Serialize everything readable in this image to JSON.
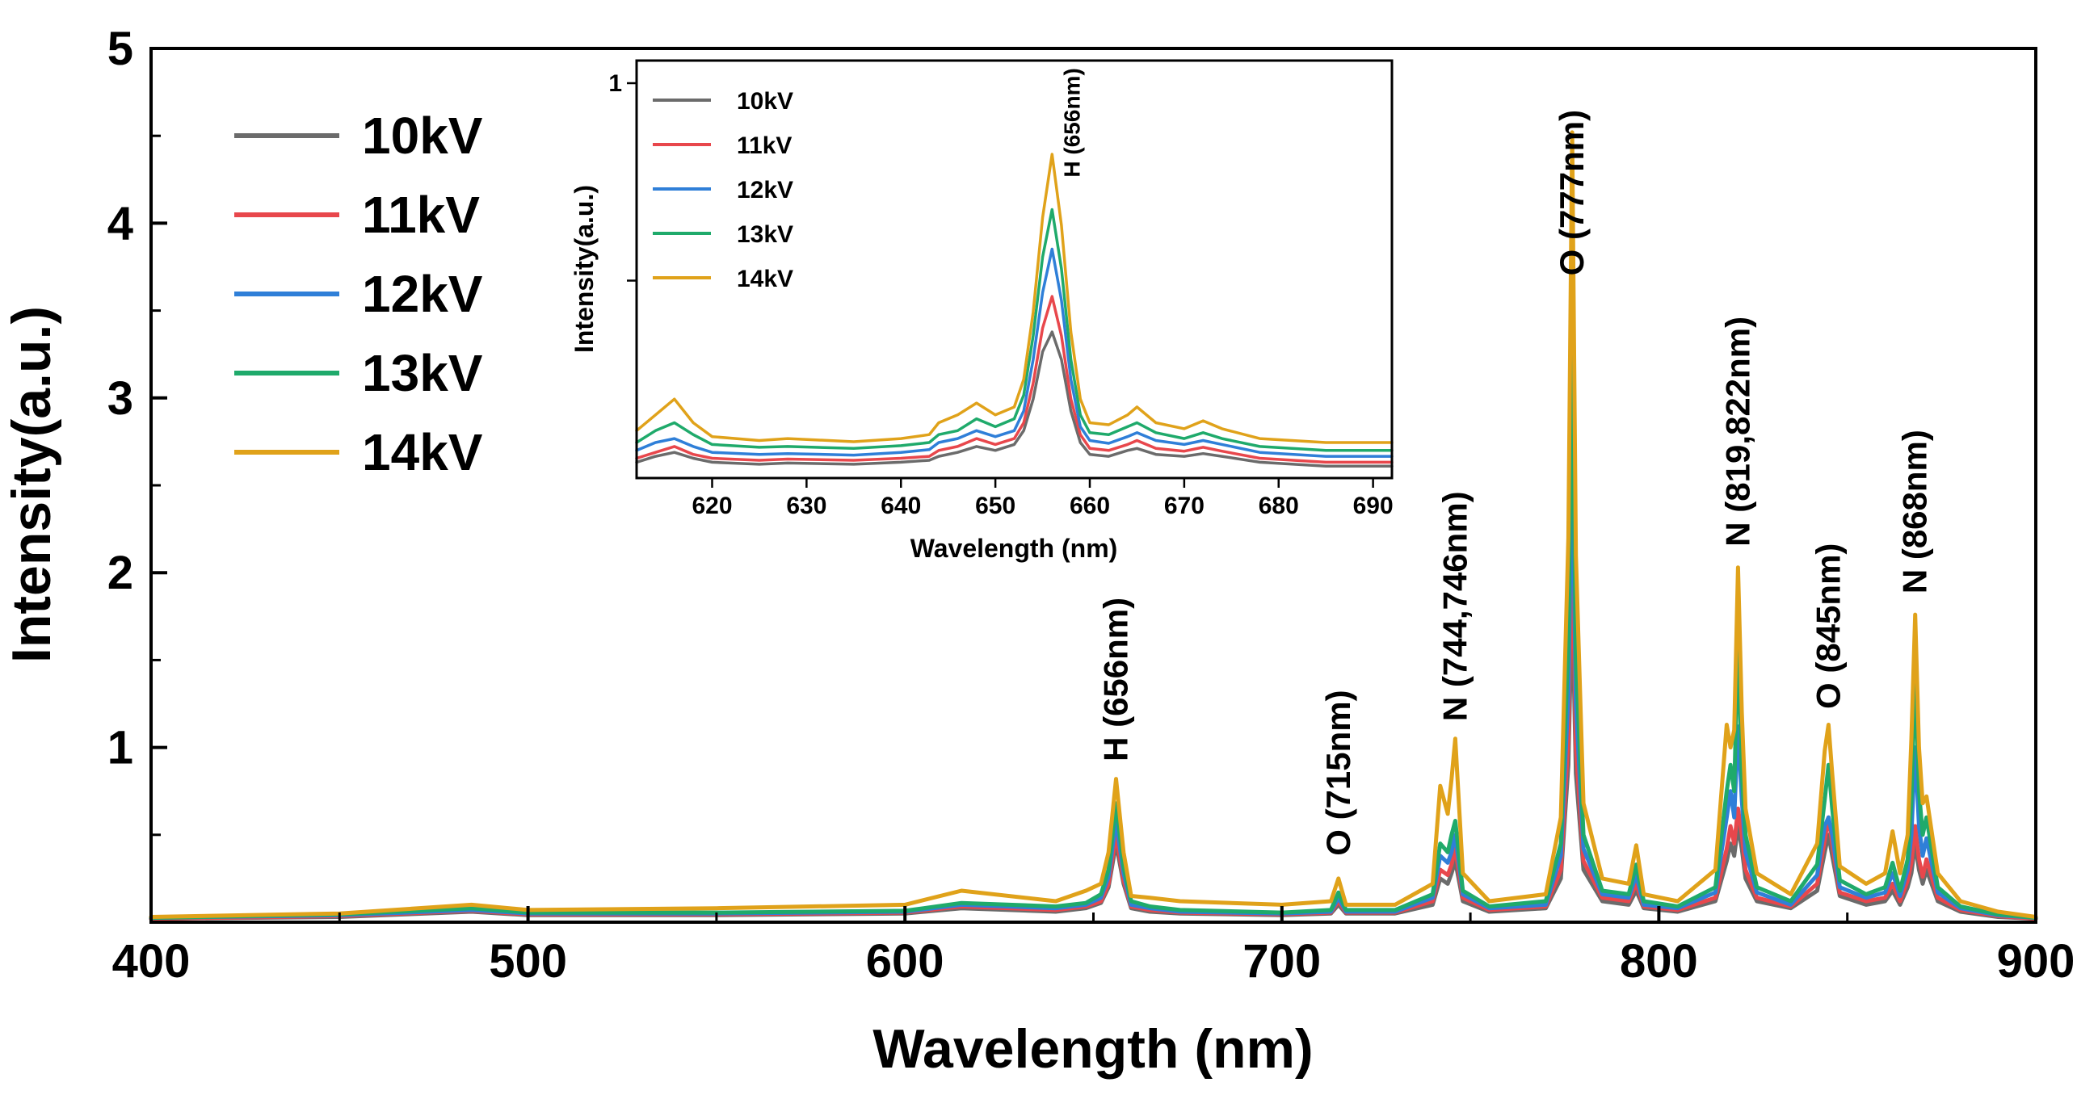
{
  "chart_data": [
    {
      "type": "line",
      "xlabel": "Wavelength (nm)",
      "ylabel": "Intensity(a.u.)",
      "xlim": [
        400,
        900
      ],
      "ylim": [
        0,
        5
      ],
      "x_ticks": [
        400,
        500,
        600,
        700,
        800,
        900
      ],
      "y_ticks": [
        1,
        2,
        3,
        4,
        5
      ],
      "grid": false,
      "legend_position": "top-left",
      "x": [
        400,
        450,
        485,
        500,
        550,
        600,
        615,
        640,
        648,
        652,
        654,
        656,
        658,
        660,
        665,
        673,
        700,
        713,
        715,
        717,
        730,
        740,
        742,
        744,
        745,
        746,
        748,
        755,
        770,
        774,
        776,
        777,
        778,
        780,
        785,
        792,
        794,
        796,
        805,
        815,
        818,
        819,
        820,
        821,
        822,
        823,
        826,
        835,
        842,
        844,
        845,
        846,
        848,
        855,
        860,
        862,
        864,
        866,
        867,
        868,
        869,
        870,
        871,
        874,
        880,
        890,
        900
      ],
      "series": [
        {
          "name": "10kV",
          "color": "#6b6b6b",
          "values": [
            0.02,
            0.03,
            0.06,
            0.04,
            0.04,
            0.05,
            0.08,
            0.06,
            0.08,
            0.11,
            0.2,
            0.45,
            0.22,
            0.08,
            0.06,
            0.05,
            0.04,
            0.05,
            0.1,
            0.05,
            0.05,
            0.1,
            0.25,
            0.22,
            0.28,
            0.35,
            0.12,
            0.06,
            0.08,
            0.25,
            0.9,
            1.85,
            0.85,
            0.3,
            0.12,
            0.1,
            0.18,
            0.08,
            0.06,
            0.12,
            0.35,
            0.45,
            0.38,
            0.55,
            0.42,
            0.25,
            0.12,
            0.08,
            0.18,
            0.4,
            0.5,
            0.38,
            0.15,
            0.1,
            0.12,
            0.18,
            0.1,
            0.2,
            0.28,
            0.45,
            0.3,
            0.22,
            0.3,
            0.12,
            0.06,
            0.03,
            0.02
          ]
        },
        {
          "name": "11kV",
          "color": "#e8474c",
          "values": [
            0.02,
            0.035,
            0.065,
            0.045,
            0.045,
            0.055,
            0.09,
            0.07,
            0.09,
            0.12,
            0.22,
            0.5,
            0.24,
            0.09,
            0.07,
            0.055,
            0.045,
            0.055,
            0.12,
            0.055,
            0.055,
            0.12,
            0.3,
            0.27,
            0.33,
            0.42,
            0.14,
            0.07,
            0.09,
            0.3,
            1.05,
            2.2,
            1.0,
            0.35,
            0.14,
            0.12,
            0.22,
            0.09,
            0.07,
            0.14,
            0.42,
            0.55,
            0.45,
            0.65,
            0.5,
            0.3,
            0.14,
            0.09,
            0.22,
            0.47,
            0.6,
            0.45,
            0.17,
            0.12,
            0.14,
            0.22,
            0.12,
            0.24,
            0.34,
            0.55,
            0.36,
            0.26,
            0.36,
            0.14,
            0.07,
            0.035,
            0.02
          ]
        },
        {
          "name": "12kV",
          "color": "#2f7fd8",
          "values": [
            0.025,
            0.04,
            0.07,
            0.05,
            0.05,
            0.06,
            0.1,
            0.08,
            0.1,
            0.14,
            0.26,
            0.58,
            0.28,
            0.1,
            0.08,
            0.06,
            0.05,
            0.06,
            0.14,
            0.06,
            0.06,
            0.14,
            0.38,
            0.34,
            0.4,
            0.5,
            0.16,
            0.08,
            0.1,
            0.38,
            1.3,
            2.72,
            1.25,
            0.42,
            0.16,
            0.14,
            0.27,
            0.1,
            0.08,
            0.17,
            0.6,
            0.75,
            0.6,
            1.12,
            0.7,
            0.4,
            0.17,
            0.1,
            0.27,
            0.55,
            0.6,
            0.5,
            0.2,
            0.14,
            0.17,
            0.28,
            0.15,
            0.3,
            0.5,
            1.0,
            0.55,
            0.38,
            0.48,
            0.17,
            0.08,
            0.04,
            0.025
          ]
        },
        {
          "name": "13kV",
          "color": "#1faa6b",
          "values": [
            0.025,
            0.045,
            0.08,
            0.055,
            0.055,
            0.065,
            0.11,
            0.09,
            0.11,
            0.16,
            0.3,
            0.68,
            0.32,
            0.12,
            0.09,
            0.07,
            0.055,
            0.07,
            0.17,
            0.07,
            0.07,
            0.16,
            0.45,
            0.4,
            0.5,
            0.58,
            0.18,
            0.09,
            0.12,
            0.45,
            1.6,
            3.32,
            1.5,
            0.5,
            0.18,
            0.16,
            0.33,
            0.12,
            0.09,
            0.2,
            0.75,
            0.9,
            0.75,
            1.64,
            0.85,
            0.5,
            0.2,
            0.12,
            0.33,
            0.7,
            0.9,
            0.65,
            0.24,
            0.16,
            0.2,
            0.34,
            0.18,
            0.36,
            0.7,
            1.43,
            0.75,
            0.5,
            0.6,
            0.2,
            0.09,
            0.045,
            0.025
          ]
        },
        {
          "name": "14kV",
          "color": "#e0a21a",
          "values": [
            0.03,
            0.05,
            0.1,
            0.07,
            0.08,
            0.1,
            0.18,
            0.12,
            0.18,
            0.22,
            0.4,
            0.82,
            0.4,
            0.15,
            0.14,
            0.12,
            0.1,
            0.12,
            0.25,
            0.1,
            0.1,
            0.22,
            0.78,
            0.62,
            0.82,
            1.05,
            0.28,
            0.12,
            0.16,
            0.6,
            2.2,
            4.52,
            2.1,
            0.68,
            0.25,
            0.22,
            0.44,
            0.16,
            0.12,
            0.3,
            1.13,
            1.0,
            1.1,
            2.03,
            1.2,
            0.65,
            0.28,
            0.16,
            0.45,
            0.98,
            1.13,
            0.85,
            0.32,
            0.22,
            0.28,
            0.52,
            0.28,
            0.5,
            1.05,
            1.76,
            1.0,
            0.68,
            0.72,
            0.28,
            0.12,
            0.06,
            0.03
          ]
        }
      ],
      "annotations": [
        {
          "text": "H (656nm)",
          "x": 656,
          "y": 0.92
        },
        {
          "text": "O (715nm)",
          "x": 715,
          "y": 0.38
        },
        {
          "text": "N (744,746nm)",
          "x": 746,
          "y": 1.15
        },
        {
          "text": "O (777nm)",
          "x": 777,
          "y": 3.7
        },
        {
          "text": "N (819,822nm)",
          "x": 821,
          "y": 2.15
        },
        {
          "text": "O (845nm)",
          "x": 845,
          "y": 1.22
        },
        {
          "text": "N (868nm)",
          "x": 868,
          "y": 1.88
        }
      ]
    },
    {
      "type": "line",
      "xlabel": "Wavelength (nm)",
      "ylabel": "Intensity(a.u.)",
      "xlim": [
        612,
        692
      ],
      "ylim": [
        0,
        1
      ],
      "x_ticks": [
        620,
        630,
        640,
        650,
        660,
        670,
        680,
        690
      ],
      "y_ticks": [
        1
      ],
      "grid": false,
      "legend_position": "top-left",
      "x": [
        612,
        614,
        616,
        618,
        620,
        625,
        628,
        635,
        640,
        643,
        644,
        646,
        648,
        650,
        652,
        653,
        654,
        655,
        656,
        657,
        658,
        659,
        660,
        662,
        664,
        665,
        667,
        670,
        672,
        674,
        678,
        685,
        692
      ],
      "series": [
        {
          "name": "10kV",
          "color": "#6b6b6b",
          "values": [
            0.04,
            0.055,
            0.065,
            0.05,
            0.04,
            0.035,
            0.038,
            0.035,
            0.04,
            0.045,
            0.055,
            0.065,
            0.08,
            0.07,
            0.085,
            0.12,
            0.2,
            0.32,
            0.37,
            0.3,
            0.17,
            0.09,
            0.06,
            0.055,
            0.07,
            0.075,
            0.06,
            0.055,
            0.062,
            0.055,
            0.04,
            0.03,
            0.03
          ]
        },
        {
          "name": "11kV",
          "color": "#e8474c",
          "values": [
            0.05,
            0.065,
            0.08,
            0.06,
            0.05,
            0.045,
            0.048,
            0.045,
            0.05,
            0.055,
            0.07,
            0.08,
            0.1,
            0.085,
            0.1,
            0.14,
            0.24,
            0.38,
            0.46,
            0.36,
            0.2,
            0.11,
            0.075,
            0.07,
            0.085,
            0.095,
            0.075,
            0.068,
            0.078,
            0.068,
            0.05,
            0.04,
            0.04
          ]
        },
        {
          "name": "12kV",
          "color": "#2f7fd8",
          "values": [
            0.07,
            0.09,
            0.1,
            0.08,
            0.065,
            0.06,
            0.062,
            0.058,
            0.065,
            0.072,
            0.09,
            0.1,
            0.12,
            0.105,
            0.12,
            0.17,
            0.3,
            0.47,
            0.58,
            0.45,
            0.25,
            0.13,
            0.095,
            0.088,
            0.105,
            0.115,
            0.095,
            0.085,
            0.095,
            0.085,
            0.065,
            0.055,
            0.055
          ]
        },
        {
          "name": "13kV",
          "color": "#1faa6b",
          "values": [
            0.09,
            0.12,
            0.14,
            0.11,
            0.085,
            0.078,
            0.08,
            0.075,
            0.082,
            0.09,
            0.11,
            0.12,
            0.15,
            0.13,
            0.15,
            0.21,
            0.36,
            0.56,
            0.68,
            0.53,
            0.3,
            0.16,
            0.115,
            0.11,
            0.13,
            0.14,
            0.115,
            0.1,
            0.115,
            0.1,
            0.08,
            0.07,
            0.07
          ]
        },
        {
          "name": "14kV",
          "color": "#e0a21a",
          "values": [
            0.12,
            0.16,
            0.2,
            0.14,
            0.105,
            0.095,
            0.1,
            0.092,
            0.1,
            0.11,
            0.14,
            0.16,
            0.19,
            0.16,
            0.18,
            0.25,
            0.42,
            0.66,
            0.82,
            0.64,
            0.37,
            0.2,
            0.14,
            0.135,
            0.16,
            0.18,
            0.14,
            0.125,
            0.145,
            0.125,
            0.1,
            0.09,
            0.09
          ]
        }
      ],
      "annotations": [
        {
          "text": "H (656nm)",
          "x": 656,
          "y": 0.9
        }
      ]
    }
  ]
}
